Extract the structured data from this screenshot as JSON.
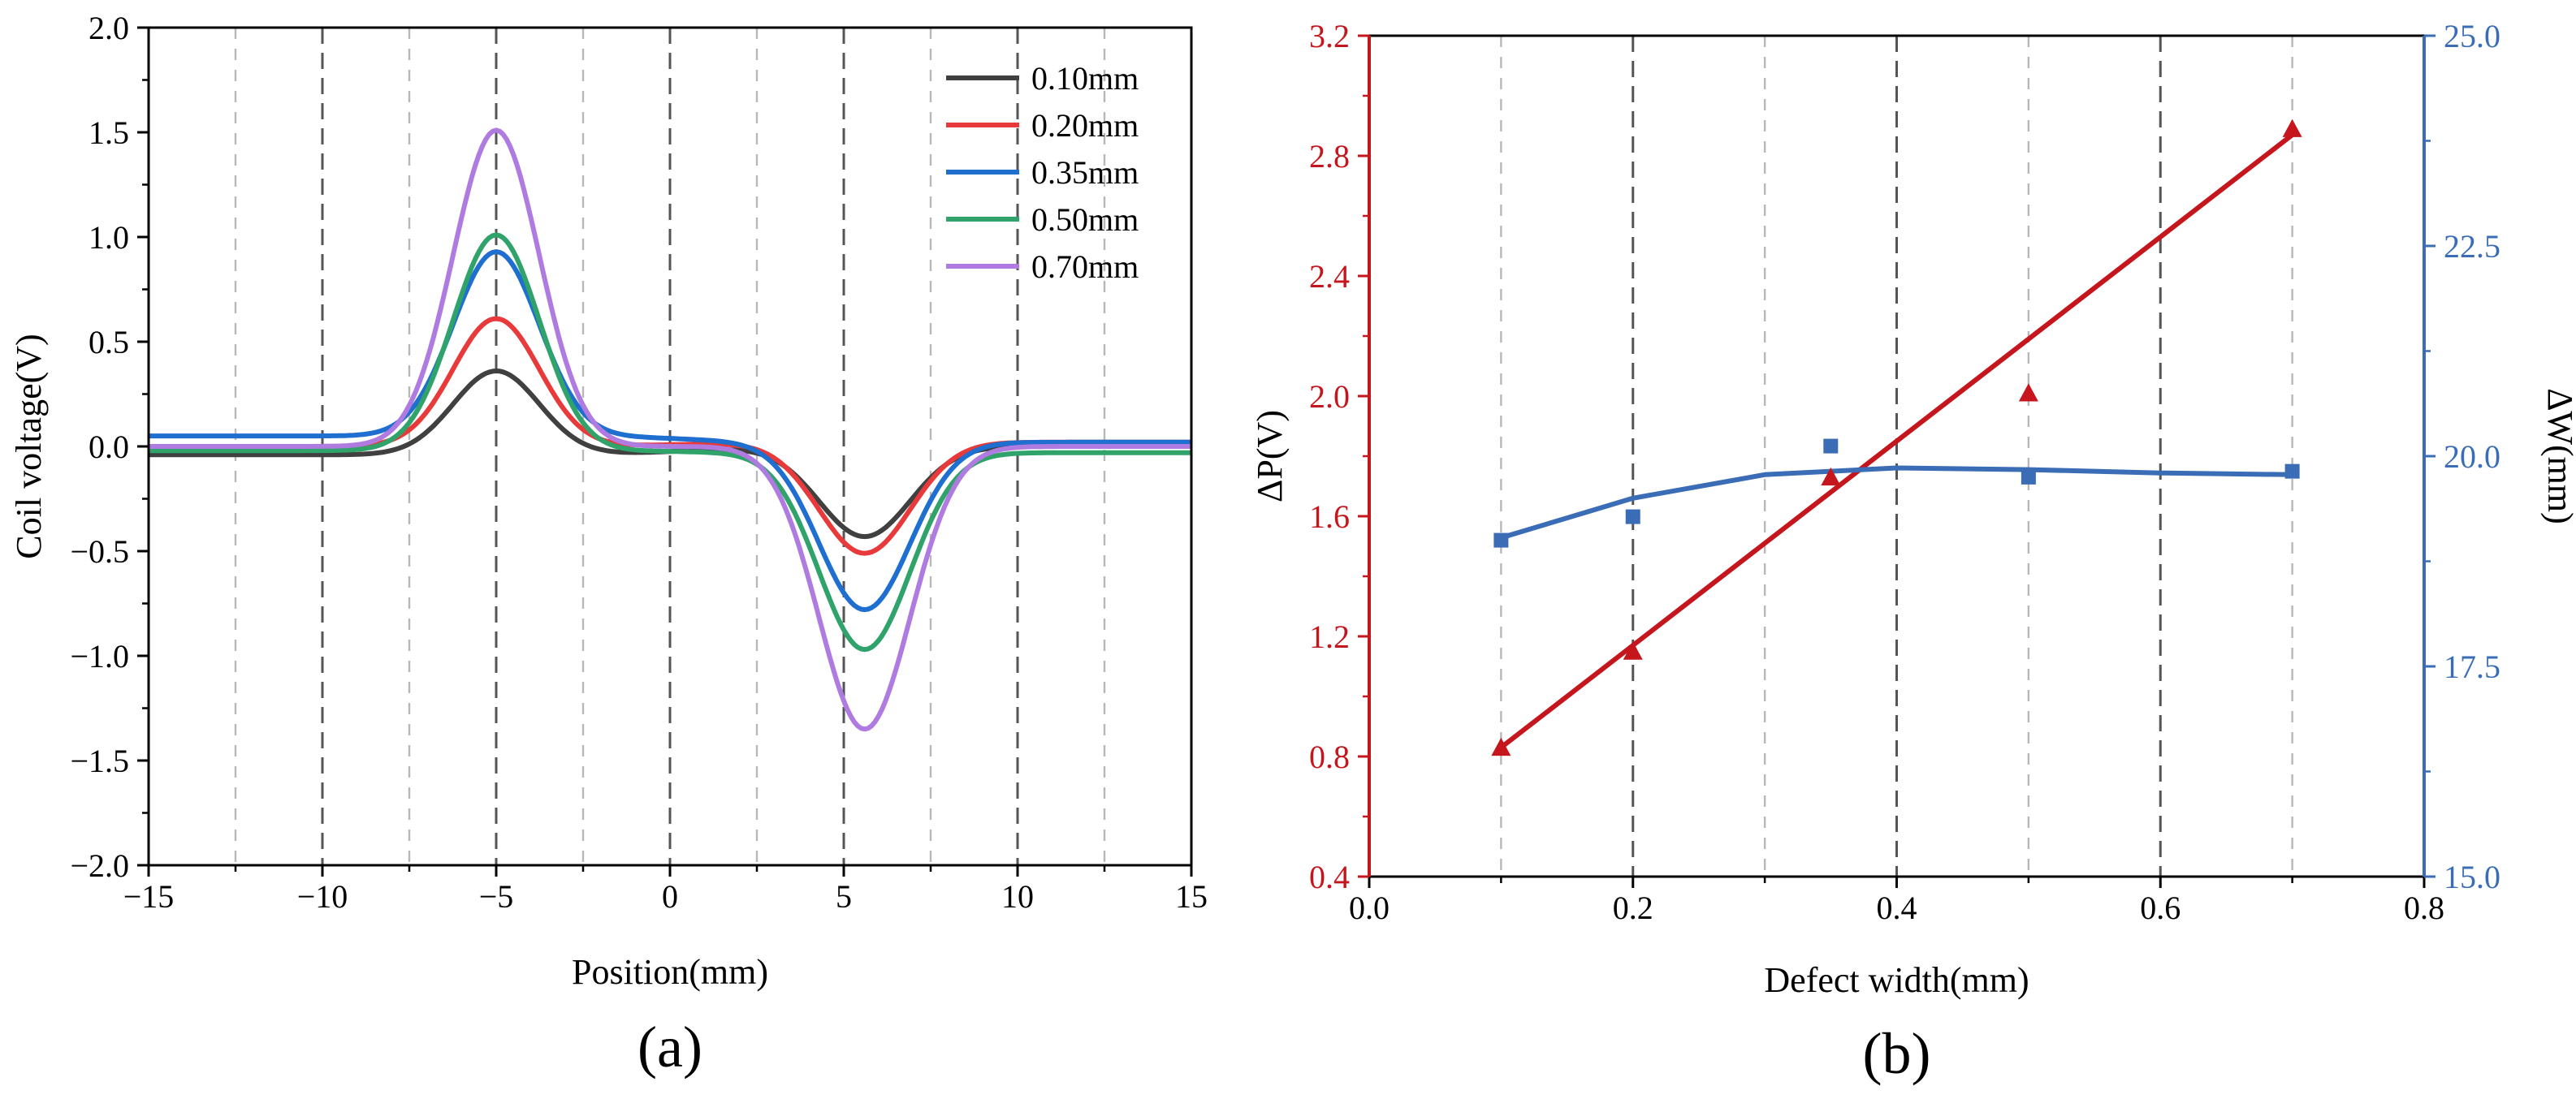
{
  "chart_data": [
    {
      "type": "line",
      "panel_label": "(a)",
      "xlabel": "Position(mm)",
      "ylabel": "Coil voltage(V)",
      "xlim": [
        -15,
        15
      ],
      "ylim": [
        -2.0,
        2.0
      ],
      "xticks": [
        -15,
        -10,
        -5,
        0,
        5,
        10,
        15
      ],
      "xtick_labels": [
        "−15",
        "−10",
        "−5",
        "0",
        "5",
        "10",
        "15"
      ],
      "yticks": [
        -2.0,
        -1.5,
        -1.0,
        -0.5,
        0.0,
        0.5,
        1.0,
        1.5,
        2.0
      ],
      "ytick_labels": [
        "−2.0",
        "−1.5",
        "−1.0",
        "−0.5",
        "0.0",
        "0.5",
        "1.0",
        "1.5",
        "2.0"
      ],
      "grid": "vertical dashed lines at every 2.5 mm",
      "legend_position": "top-right",
      "series": [
        {
          "name": "0.10mm",
          "color": "#404040",
          "peak": 0.36,
          "peak_x": -5.0,
          "trough": -0.43,
          "trough_x": 5.6,
          "left_baseline": -0.04,
          "right_baseline": 0.0
        },
        {
          "name": "0.20mm",
          "color": "#e83a3a",
          "peak": 0.61,
          "peak_x": -5.0,
          "trough": -0.51,
          "trough_x": 5.6,
          "left_baseline": 0.0,
          "right_baseline": 0.02
        },
        {
          "name": "0.35mm",
          "color": "#1e6fd0",
          "peak": 0.93,
          "peak_x": -5.0,
          "trough": -0.78,
          "trough_x": 5.6,
          "left_baseline": 0.05,
          "right_baseline": 0.02
        },
        {
          "name": "0.50mm",
          "color": "#2fa36a",
          "peak": 1.01,
          "peak_x": -5.0,
          "trough": -0.97,
          "trough_x": 5.6,
          "left_baseline": -0.02,
          "right_baseline": -0.03
        },
        {
          "name": "0.70mm",
          "color": "#b07be0",
          "peak": 1.51,
          "peak_x": -5.0,
          "trough": -1.35,
          "trough_x": 5.6,
          "left_baseline": 0.0,
          "right_baseline": 0.0
        }
      ]
    },
    {
      "type": "scatter",
      "panel_label": "(b)",
      "xlabel": "Defect width(mm)",
      "ylabel_left": "ΔP(V)",
      "ylabel_right": "ΔW(mm)",
      "xlim": [
        0.0,
        0.8
      ],
      "ylim_left": [
        0.4,
        3.2
      ],
      "ylim_right": [
        15.0,
        25.0
      ],
      "xticks": [
        0.0,
        0.2,
        0.4,
        0.6,
        0.8
      ],
      "xtick_labels": [
        "0.0",
        "0.2",
        "0.4",
        "0.6",
        "0.8"
      ],
      "yticks_left": [
        0.4,
        0.8,
        1.2,
        1.6,
        2.0,
        2.4,
        2.8,
        3.2
      ],
      "ytick_labels_left": [
        "0.4",
        "0.8",
        "1.2",
        "1.6",
        "2.0",
        "2.4",
        "2.8",
        "3.2"
      ],
      "yticks_right": [
        15.0,
        17.5,
        20.0,
        22.5,
        25.0
      ],
      "ytick_labels_right": [
        "15.0",
        "17.5",
        "20.0",
        "22.5",
        "25.0"
      ],
      "grid": "vertical dashed lines at every 0.1 mm",
      "series": [
        {
          "name": "ΔP",
          "axis": "left",
          "marker": "triangle",
          "color": "#c4161c",
          "x": [
            0.1,
            0.2,
            0.35,
            0.5,
            0.7
          ],
          "y": [
            0.83,
            1.15,
            1.73,
            2.01,
            2.89
          ],
          "fit": "linear",
          "fit_x": [
            0.1,
            0.7
          ],
          "fit_y": [
            0.83,
            2.87
          ]
        },
        {
          "name": "ΔW",
          "axis": "right",
          "marker": "square",
          "color": "#3a6db5",
          "x": [
            0.1,
            0.2,
            0.35,
            0.5,
            0.7
          ],
          "y": [
            19.0,
            19.28,
            20.12,
            19.75,
            19.82
          ],
          "fit": "quadratic",
          "fit_x": [
            0.1,
            0.2,
            0.3,
            0.4,
            0.5,
            0.6,
            0.7
          ],
          "fit_y": [
            19.03,
            19.5,
            19.78,
            19.86,
            19.84,
            19.8,
            19.78
          ]
        }
      ]
    }
  ]
}
